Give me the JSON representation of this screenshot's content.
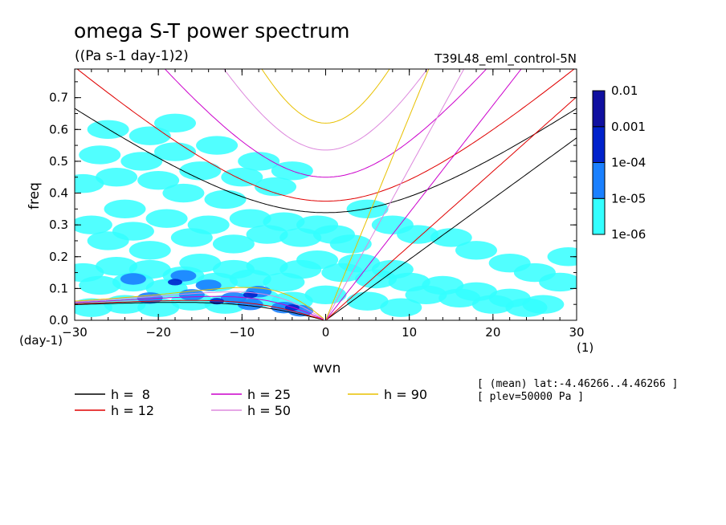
{
  "chart_data": {
    "type": "heatmap",
    "title": "omega S-T power spectrum",
    "subtitle": "((Pa s-1 day-1)2)",
    "run_label": "T39L48_eml_control-5N",
    "xlabel": "wvn",
    "ylabel": "freq",
    "x_unit": "(1)",
    "y_unit": "(day-1)",
    "xlim": [
      -30,
      30
    ],
    "ylim": [
      0,
      0.79
    ],
    "x_ticks": [
      -30,
      -20,
      -10,
      0,
      10,
      20,
      30
    ],
    "y_ticks": [
      0.0,
      0.1,
      0.2,
      0.3,
      0.4,
      0.5,
      0.6,
      0.7
    ],
    "colorbar": {
      "levels": [
        "1e-06",
        "1e-05",
        "1e-04",
        "0.001",
        "0.01"
      ],
      "colors": [
        "#33ffff",
        "#1a80ff",
        "#0022cc",
        "#1010a0",
        "#4a10aa"
      ]
    },
    "dispersion_curves": [
      {
        "name": "h =  8",
        "h": 8,
        "color": "#000000"
      },
      {
        "name": "h = 12",
        "h": 12,
        "color": "#e00000"
      },
      {
        "name": "h = 25",
        "h": 25,
        "color": "#cc00cc"
      },
      {
        "name": "h = 50",
        "h": 50,
        "color": "#dd88dd"
      },
      {
        "name": "h = 90",
        "h": 90,
        "color": "#e8c000"
      }
    ],
    "info_lines": [
      "[ (mean) lat:-4.46266..4.46266 ]",
      "[ plev=50000 Pa ]"
    ],
    "spectrum_blobs": [
      {
        "x": -29,
        "y": 0.43,
        "level": 0
      },
      {
        "x": -27,
        "y": 0.52,
        "level": 0
      },
      {
        "x": -25,
        "y": 0.45,
        "level": 0
      },
      {
        "x": -24,
        "y": 0.35,
        "level": 0
      },
      {
        "x": -22,
        "y": 0.5,
        "level": 0
      },
      {
        "x": -20,
        "y": 0.44,
        "level": 0
      },
      {
        "x": -18,
        "y": 0.53,
        "level": 0
      },
      {
        "x": -17,
        "y": 0.4,
        "level": 0
      },
      {
        "x": -15,
        "y": 0.47,
        "level": 0
      },
      {
        "x": -13,
        "y": 0.55,
        "level": 0
      },
      {
        "x": -12,
        "y": 0.38,
        "level": 0
      },
      {
        "x": -10,
        "y": 0.45,
        "level": 0
      },
      {
        "x": -8,
        "y": 0.5,
        "level": 0
      },
      {
        "x": -6,
        "y": 0.42,
        "level": 0
      },
      {
        "x": -4,
        "y": 0.47,
        "level": 0
      },
      {
        "x": -28,
        "y": 0.3,
        "level": 0
      },
      {
        "x": -26,
        "y": 0.25,
        "level": 0
      },
      {
        "x": -23,
        "y": 0.28,
        "level": 0
      },
      {
        "x": -21,
        "y": 0.22,
        "level": 0
      },
      {
        "x": -19,
        "y": 0.32,
        "level": 0
      },
      {
        "x": -16,
        "y": 0.26,
        "level": 0
      },
      {
        "x": -14,
        "y": 0.3,
        "level": 0
      },
      {
        "x": -11,
        "y": 0.24,
        "level": 0
      },
      {
        "x": -9,
        "y": 0.32,
        "level": 0
      },
      {
        "x": -7,
        "y": 0.27,
        "level": 0
      },
      {
        "x": -5,
        "y": 0.31,
        "level": 0
      },
      {
        "x": -3,
        "y": 0.26,
        "level": 0
      },
      {
        "x": -1,
        "y": 0.3,
        "level": 0
      },
      {
        "x": 1,
        "y": 0.27,
        "level": 0
      },
      {
        "x": 3,
        "y": 0.24,
        "level": 0
      },
      {
        "x": -29,
        "y": 0.15,
        "level": 0
      },
      {
        "x": -27,
        "y": 0.11,
        "level": 0
      },
      {
        "x": -25,
        "y": 0.17,
        "level": 0
      },
      {
        "x": -23,
        "y": 0.12,
        "level": 0
      },
      {
        "x": -21,
        "y": 0.16,
        "level": 0
      },
      {
        "x": -19,
        "y": 0.1,
        "level": 0
      },
      {
        "x": -17,
        "y": 0.14,
        "level": 0
      },
      {
        "x": -15,
        "y": 0.18,
        "level": 0
      },
      {
        "x": -13,
        "y": 0.12,
        "level": 0
      },
      {
        "x": -11,
        "y": 0.16,
        "level": 0
      },
      {
        "x": -9,
        "y": 0.13,
        "level": 0
      },
      {
        "x": -7,
        "y": 0.17,
        "level": 0
      },
      {
        "x": -5,
        "y": 0.12,
        "level": 0
      },
      {
        "x": -3,
        "y": 0.16,
        "level": 0
      },
      {
        "x": -1,
        "y": 0.19,
        "level": 0
      },
      {
        "x": 2,
        "y": 0.15,
        "level": 0
      },
      {
        "x": 4,
        "y": 0.18,
        "level": 0
      },
      {
        "x": 6,
        "y": 0.13,
        "level": 0
      },
      {
        "x": 8,
        "y": 0.16,
        "level": 0
      },
      {
        "x": 10,
        "y": 0.12,
        "level": 0
      },
      {
        "x": 12,
        "y": 0.08,
        "level": 0
      },
      {
        "x": 14,
        "y": 0.11,
        "level": 0
      },
      {
        "x": 16,
        "y": 0.07,
        "level": 0
      },
      {
        "x": 18,
        "y": 0.09,
        "level": 0
      },
      {
        "x": 20,
        "y": 0.05,
        "level": 0
      },
      {
        "x": 22,
        "y": 0.07,
        "level": 0
      },
      {
        "x": 24,
        "y": 0.04,
        "level": 0
      },
      {
        "x": 26,
        "y": 0.05,
        "level": 0
      },
      {
        "x": -28,
        "y": 0.04,
        "level": 0
      },
      {
        "x": -24,
        "y": 0.05,
        "level": 0
      },
      {
        "x": -20,
        "y": 0.04,
        "level": 0
      },
      {
        "x": -16,
        "y": 0.06,
        "level": 0
      },
      {
        "x": -12,
        "y": 0.05,
        "level": 0
      },
      {
        "x": -8,
        "y": 0.07,
        "level": 0
      },
      {
        "x": -4,
        "y": 0.06,
        "level": 0
      },
      {
        "x": 0,
        "y": 0.08,
        "level": 0
      },
      {
        "x": 5,
        "y": 0.06,
        "level": 0
      },
      {
        "x": 9,
        "y": 0.04,
        "level": 0
      },
      {
        "x": -26,
        "y": 0.6,
        "level": 0
      },
      {
        "x": -21,
        "y": 0.58,
        "level": 0
      },
      {
        "x": -18,
        "y": 0.62,
        "level": 0
      },
      {
        "x": 5,
        "y": 0.35,
        "level": 0
      },
      {
        "x": 8,
        "y": 0.3,
        "level": 0
      },
      {
        "x": 11,
        "y": 0.27,
        "level": 0
      },
      {
        "x": 15,
        "y": 0.26,
        "level": 0
      },
      {
        "x": 18,
        "y": 0.22,
        "level": 0
      },
      {
        "x": 22,
        "y": 0.18,
        "level": 0
      },
      {
        "x": 25,
        "y": 0.15,
        "level": 0
      },
      {
        "x": 28,
        "y": 0.12,
        "level": 0
      },
      {
        "x": 29,
        "y": 0.2,
        "level": 0
      },
      {
        "x": -14,
        "y": 0.11,
        "level": 1
      },
      {
        "x": -11,
        "y": 0.07,
        "level": 1
      },
      {
        "x": -8,
        "y": 0.09,
        "level": 1
      },
      {
        "x": -17,
        "y": 0.14,
        "level": 1
      },
      {
        "x": -5,
        "y": 0.04,
        "level": 1
      },
      {
        "x": -3,
        "y": 0.03,
        "level": 1
      },
      {
        "x": -21,
        "y": 0.07,
        "level": 1
      },
      {
        "x": -23,
        "y": 0.13,
        "level": 1
      },
      {
        "x": -16,
        "y": 0.08,
        "level": 1
      },
      {
        "x": -9,
        "y": 0.05,
        "level": 1
      },
      {
        "x": -18,
        "y": 0.12,
        "level": 2
      },
      {
        "x": -9,
        "y": 0.08,
        "level": 2
      },
      {
        "x": -4,
        "y": 0.04,
        "level": 2
      },
      {
        "x": -13,
        "y": 0.06,
        "level": 2
      }
    ]
  }
}
